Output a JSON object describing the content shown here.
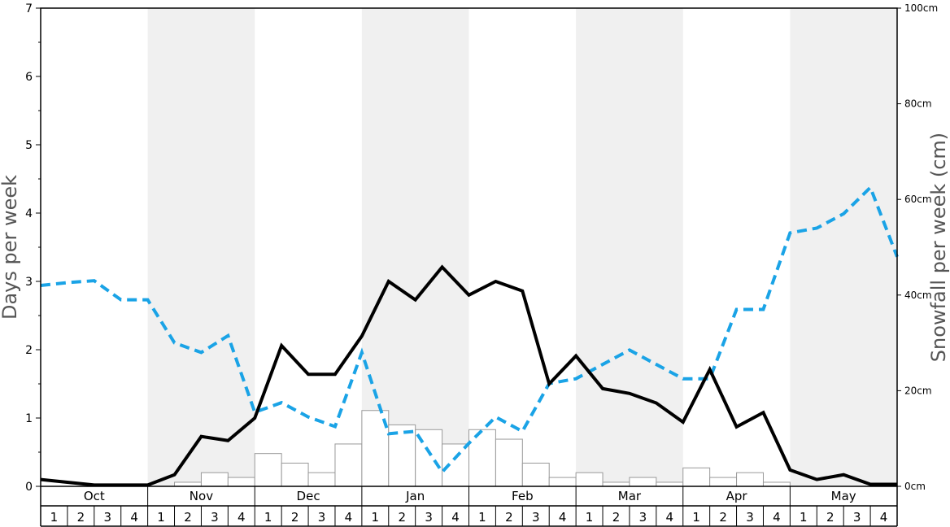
{
  "chart_data": {
    "type": "bar",
    "title": "",
    "ylabel_left": "Days per week",
    "ylabel_right": "Snowfall per week (cm)",
    "ylim_left": [
      0,
      7
    ],
    "ylim_right": [
      0,
      100
    ],
    "left_ticks": [
      "0",
      "1",
      "2",
      "3",
      "4",
      "5",
      "6",
      "7"
    ],
    "right_ticks": [
      "0cm",
      "20cm",
      "40cm",
      "60cm",
      "80cm",
      "100cm"
    ],
    "months": [
      "Oct",
      "Nov",
      "Dec",
      "Jan",
      "Feb",
      "Mar",
      "Apr",
      "May"
    ],
    "weeks": [
      "1",
      "2",
      "3",
      "4"
    ],
    "x_points": 32,
    "grid": false,
    "shaded_months": [
      "Nov",
      "Jan",
      "Mar",
      "May"
    ],
    "colors": {
      "bars_fill": "#ffffff",
      "bars_stroke": "#999999",
      "solid_line": "#000000",
      "dashed_line": "#1aa3e6",
      "shade": "#f0f0f0"
    },
    "series": [
      {
        "style": "bars",
        "axis": "left",
        "values": [
          0,
          0,
          0,
          0,
          0,
          0.06,
          0.2,
          0.13,
          0.48,
          0.34,
          0.2,
          0.62,
          1.11,
          0.9,
          0.83,
          0.62,
          0.83,
          0.69,
          0.34,
          0.13,
          0.2,
          0.06,
          0.13,
          0.06,
          0.27,
          0.13,
          0.2,
          0.06,
          0,
          0,
          0,
          0
        ]
      },
      {
        "style": "solid-line",
        "axis": "left",
        "values": [
          0.1,
          0.06,
          0.02,
          0.02,
          0.02,
          0.17,
          0.73,
          0.67,
          1.0,
          2.06,
          1.64,
          1.64,
          2.2,
          3.0,
          2.73,
          3.21,
          2.8,
          3.0,
          2.86,
          1.5,
          1.91,
          1.43,
          1.36,
          1.22,
          0.94,
          1.71,
          0.87,
          1.08,
          0.24,
          0.1,
          0.17,
          0.03,
          0.03
        ]
      },
      {
        "style": "dashed-line",
        "axis": "right",
        "values": [
          42,
          42.6,
          43,
          39,
          39,
          30,
          28,
          31.5,
          15.5,
          17.5,
          14.5,
          12.5,
          28,
          11,
          11.5,
          3,
          9,
          14.5,
          11.5,
          21.5,
          22.5,
          25.5,
          28.5,
          25.5,
          22.5,
          22.5,
          37,
          37,
          53,
          54,
          57,
          62.5,
          48
        ]
      }
    ]
  }
}
